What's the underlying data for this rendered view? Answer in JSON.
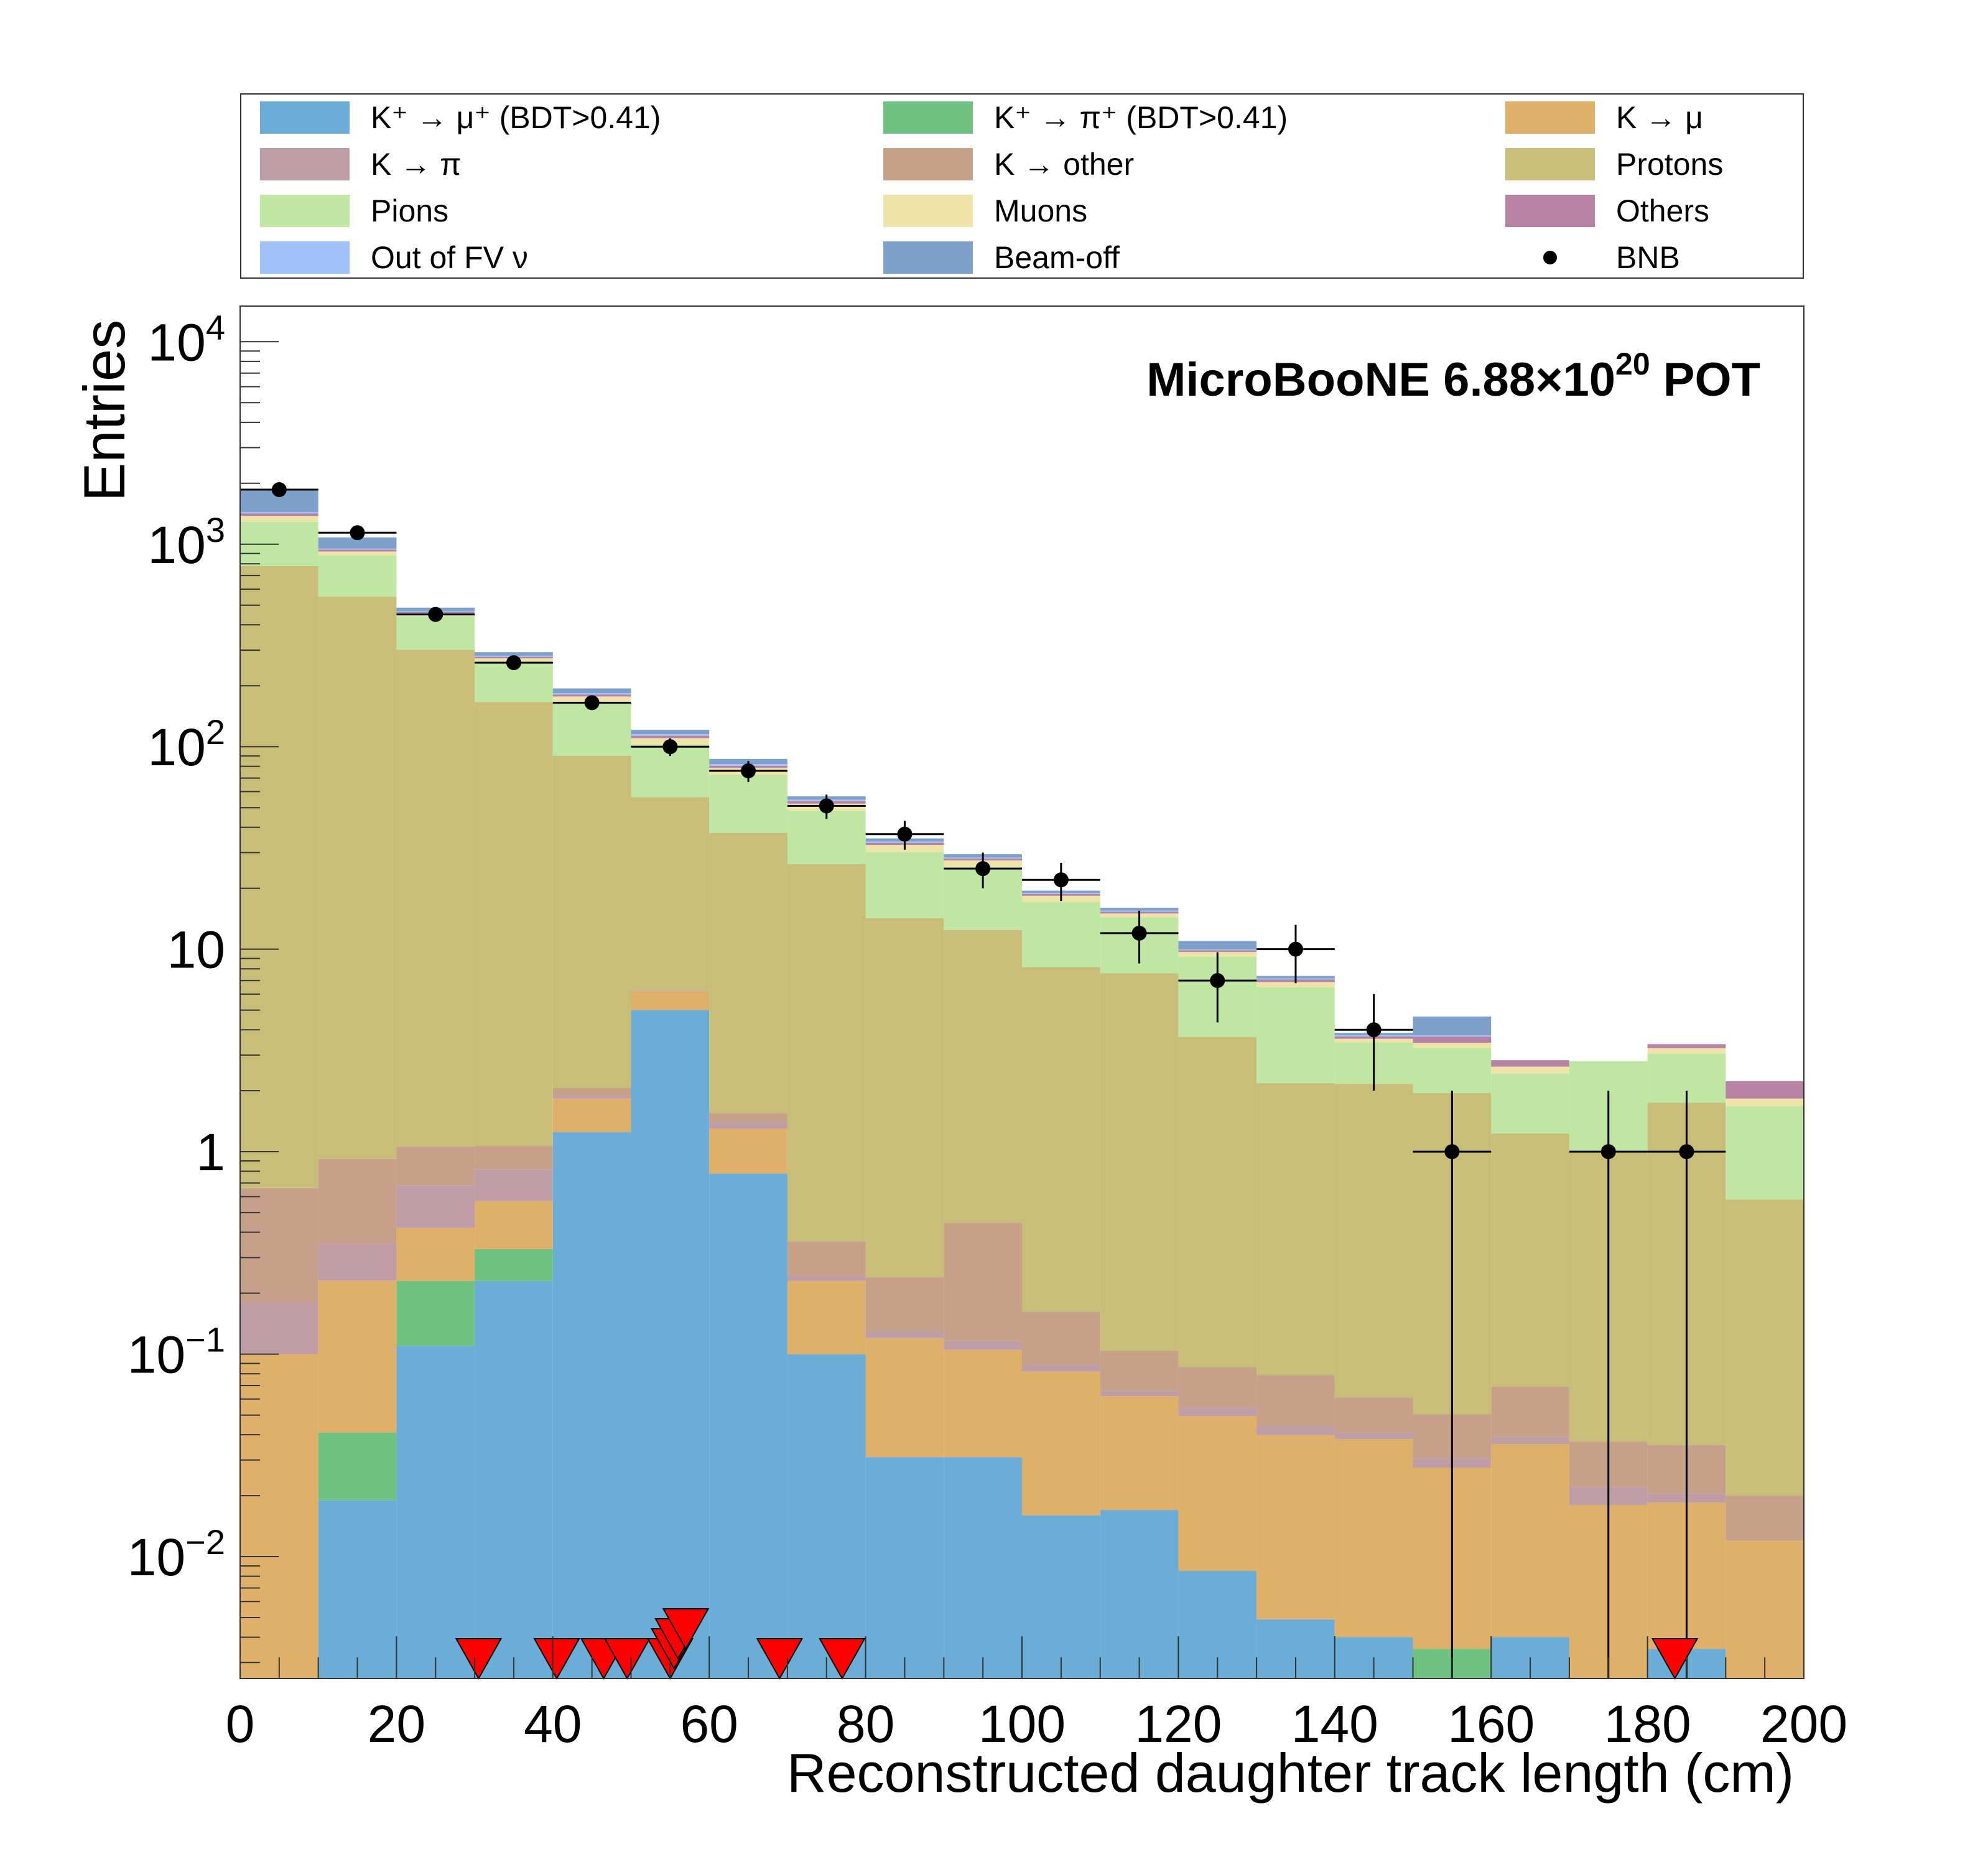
{
  "chart_data": {
    "type": "bar",
    "stacked": true,
    "title": "MicroBooNE 6.88×10^20 POT",
    "xlabel": "Reconstructed daughter track length (cm)",
    "ylabel": "Entries",
    "xlim": [
      0,
      200
    ],
    "ylim": [
      0.0025,
      15000
    ],
    "yscale": "log",
    "bin_width": 10,
    "x_bin_edges": [
      0,
      10,
      20,
      30,
      40,
      50,
      60,
      70,
      80,
      90,
      100,
      110,
      120,
      130,
      140,
      150,
      160,
      170,
      180,
      190,
      200
    ],
    "x_ticks": [
      "0",
      "20",
      "40",
      "60",
      "80",
      "100",
      "120",
      "140",
      "160",
      "180",
      "200"
    ],
    "y_ticks": [
      {
        "value": 0.01,
        "mantissa": "10",
        "exp": "−2"
      },
      {
        "value": 0.1,
        "mantissa": "10",
        "exp": "−1"
      },
      {
        "value": 1,
        "mantissa": "1",
        "exp": ""
      },
      {
        "value": 10,
        "mantissa": "10",
        "exp": ""
      },
      {
        "value": 100,
        "mantissa": "10",
        "exp": "2"
      },
      {
        "value": 1000,
        "mantissa": "10",
        "exp": "3"
      },
      {
        "value": 10000,
        "mantissa": "10",
        "exp": "4"
      }
    ],
    "legend_position": "top, above plot, three columns",
    "stack_order_bottom_to_top": [
      "K+ → μ+ (BDT>0.41)",
      "K+ → π+ (BDT>0.41)",
      "K → μ",
      "K → π",
      "K → other",
      "Protons",
      "Pions",
      "Muons",
      "Others",
      "Out of FV ν",
      "Beam-off"
    ],
    "series": [
      {
        "name": "K+ → μ+ (BDT>0.41)",
        "color": "#6BADD6",
        "values": [
          0,
          0.019,
          0.11,
          0.23,
          1.25,
          5.0,
          0.78,
          0.1,
          0.031,
          0.031,
          0.016,
          0.017,
          0.0085,
          0.0049,
          0.004,
          0,
          0.004,
          0,
          0.0035,
          0
        ]
      },
      {
        "name": "K+ → π+ (BDT>0.41)",
        "color": "#6FC27F",
        "values": [
          0,
          0.022,
          0.12,
          0.1,
          0,
          0,
          0,
          0,
          0,
          0,
          0,
          0,
          0,
          0,
          0,
          0.0035,
          0,
          0,
          0,
          0
        ]
      },
      {
        "name": "K → μ",
        "color": "#DFB06A",
        "values": [
          0.1,
          0.19,
          0.19,
          0.24,
          0.58,
          1.2,
          0.52,
          0.13,
          0.089,
          0.074,
          0.066,
          0.045,
          0.041,
          0.035,
          0.034,
          0.024,
          0.032,
          0.018,
          0.015,
          0.012
        ]
      },
      {
        "name": "K → π",
        "color": "#BE9DA6",
        "values": [
          0.08,
          0.12,
          0.26,
          0.25,
          0.06,
          0.05,
          0.1,
          0.015,
          0.01,
          0.011,
          0.007,
          0.004,
          0.005,
          0.004,
          0.003,
          0.003,
          0.003,
          0.004,
          0.002,
          0
        ]
      },
      {
        "name": "K → other",
        "color": "#C6A088",
        "values": [
          0.48,
          0.57,
          0.38,
          0.25,
          0.17,
          0.01,
          0.15,
          0.115,
          0.11,
          0.33,
          0.073,
          0.038,
          0.032,
          0.035,
          0.02,
          0.02,
          0.03,
          0.015,
          0.015,
          0.008
        ]
      },
      {
        "name": "Protons",
        "color": "#C8BE77",
        "values": [
          780,
          550,
          300,
          165,
          88,
          50,
          36,
          26,
          14,
          12,
          8,
          7.5,
          3.6,
          2.1,
          2.1,
          1.9,
          1.16,
          0.96,
          1.71,
          0.56
        ]
      },
      {
        "name": "Pions",
        "color": "#C0E6A3",
        "values": [
          510,
          330,
          140,
          95,
          75,
          46,
          35,
          22,
          16,
          13,
          9,
          6.8,
          5.5,
          4.3,
          1.3,
          1.3,
          1.2,
          1.8,
          1.3,
          1.1
        ]
      },
      {
        "name": "Muons",
        "color": "#F0E3A8",
        "values": [
          90,
          40,
          15,
          12,
          12,
          8,
          6,
          4,
          2.5,
          2.0,
          1.2,
          0.6,
          0.5,
          0.4,
          0.15,
          0.2,
          0.2,
          0,
          0.2,
          0.15
        ]
      },
      {
        "name": "Others",
        "color": "#B882A4",
        "values": [
          40,
          20,
          6,
          5,
          4,
          3,
          2,
          1.5,
          0.8,
          0.6,
          0.4,
          0.3,
          0.2,
          0.2,
          0.1,
          0.25,
          0.2,
          0,
          0.15,
          0.4
        ]
      },
      {
        "name": "Out of FV ν",
        "color": "#A1C1F9",
        "values": [
          20,
          10,
          4,
          3,
          3,
          2,
          1.5,
          1,
          0.5,
          0.4,
          0.2,
          0.2,
          0.1,
          0.1,
          0.05,
          0.05,
          0,
          0,
          0,
          0
        ]
      },
      {
        "name": "Beam-off",
        "color": "#7EA1CB",
        "values": [
          440,
          130,
          20,
          12,
          10,
          6,
          5,
          2,
          1.2,
          1.0,
          0.5,
          0.5,
          1.0,
          0.2,
          0.1,
          0.9,
          0,
          0,
          0,
          0
        ]
      }
    ],
    "bnb_data": {
      "name": "BNB",
      "x": [
        5,
        15,
        25,
        35,
        45,
        55,
        65,
        75,
        85,
        95,
        105,
        115,
        125,
        135,
        145,
        155,
        175,
        185
      ],
      "y": [
        1860,
        1140,
        450,
        260,
        165,
        100,
        76,
        51,
        37,
        25,
        22,
        12,
        7,
        10,
        4,
        1,
        1,
        1
      ],
      "y_err": [
        43,
        34,
        21,
        16,
        13,
        10,
        9,
        7,
        6,
        5,
        4.7,
        3.5,
        2.65,
        3.2,
        2,
        1,
        1,
        1
      ]
    },
    "signal_markers": {
      "description": "red downward triangles at bottom of plot",
      "x": [
        30.5,
        40.5,
        46.5,
        49.5,
        55,
        55.5,
        56,
        57,
        69,
        77,
        183.5
      ]
    }
  },
  "legend": {
    "items": [
      {
        "label": "K⁺ → μ⁺ (BDT>0.41)",
        "color": "#6BADD6",
        "type": "fill"
      },
      {
        "label": "K⁺ → π⁺ (BDT>0.41)",
        "color": "#6FC27F",
        "type": "fill"
      },
      {
        "label": "K  → μ",
        "color": "#DFB06A",
        "type": "fill"
      },
      {
        "label": "K  → π",
        "color": "#BE9DA6",
        "type": "fill"
      },
      {
        "label": "K  → other",
        "color": "#C6A088",
        "type": "fill"
      },
      {
        "label": "Protons",
        "color": "#C8BE77",
        "type": "fill"
      },
      {
        "label": "Pions",
        "color": "#C0E6A3",
        "type": "fill"
      },
      {
        "label": "Muons",
        "color": "#F0E3A8",
        "type": "fill"
      },
      {
        "label": "Others",
        "color": "#B882A4",
        "type": "fill"
      },
      {
        "label": "Out of FV ν",
        "color": "#A1C1F9",
        "type": "fill"
      },
      {
        "label": "Beam-off",
        "color": "#7EA1CB",
        "type": "fill"
      },
      {
        "label": "BNB",
        "color": "#000000",
        "type": "marker"
      }
    ]
  },
  "annotation": {
    "prefix": "MicroBooNE 6.88×10",
    "exponent": "20",
    "suffix": " POT"
  }
}
